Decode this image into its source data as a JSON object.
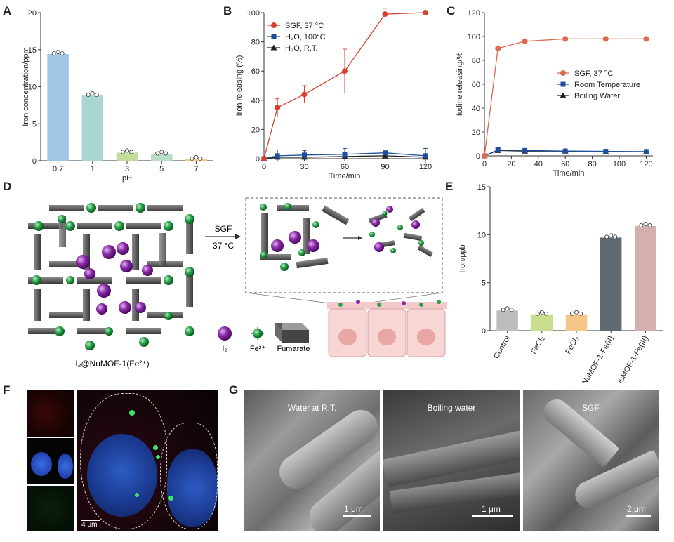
{
  "panels": {
    "A": "A",
    "B": "B",
    "C": "C",
    "D": "D",
    "E": "E",
    "F": "F",
    "G": "G"
  },
  "chart_data": [
    {
      "id": "A",
      "type": "bar",
      "categories": [
        "0.7",
        "1",
        "3",
        "5",
        "7"
      ],
      "values": [
        14.4,
        8.8,
        1.1,
        0.9,
        0.2
      ],
      "colors": [
        "#9ec7e6",
        "#a9d6cf",
        "#c3dc9c",
        "#b9dcc6",
        "#f2c88b"
      ],
      "xlabel": "pH",
      "ylabel": "Iron concentration/ppm",
      "ylim": [
        0,
        20
      ],
      "yticks": [
        0,
        5,
        10,
        15,
        20
      ]
    },
    {
      "id": "B",
      "type": "line",
      "x": [
        0,
        10,
        30,
        60,
        90,
        120
      ],
      "xlabel": "Time/min",
      "ylabel": "Iron releasing (%)",
      "xlim": [
        0,
        120
      ],
      "ylim": [
        0,
        100
      ],
      "xticks": [
        0,
        30,
        60,
        90,
        120
      ],
      "yticks": [
        0,
        20,
        40,
        60,
        80,
        100
      ],
      "series": [
        {
          "name": "SGF, 37 °C",
          "color": "#d8412f",
          "marker": "circle",
          "values": [
            0,
            35,
            44,
            60,
            99,
            100
          ],
          "errors": [
            0,
            6,
            6,
            15,
            4,
            1
          ]
        },
        {
          "name": "H₂O, 100°C",
          "color": "#1f4e9c",
          "marker": "square",
          "values": [
            0,
            2,
            2.5,
            3,
            4,
            2
          ],
          "errors": [
            0,
            4,
            3,
            4,
            2,
            5
          ]
        },
        {
          "name": "H₂O, R.T.",
          "color": "#222222",
          "marker": "triangle",
          "values": [
            0,
            1,
            1,
            1.5,
            2,
            1
          ],
          "errors": [
            0,
            1,
            1,
            1,
            1,
            1
          ]
        }
      ],
      "legend": "top-left"
    },
    {
      "id": "C",
      "type": "line",
      "x": [
        0,
        10,
        30,
        60,
        90,
        120
      ],
      "xlabel": "Time/min",
      "ylabel": "Iodine releasing/%",
      "xlim": [
        0,
        125
      ],
      "ylim": [
        0,
        120
      ],
      "xticks": [
        0,
        20,
        40,
        60,
        80,
        100,
        120
      ],
      "yticks": [
        0,
        20,
        40,
        60,
        80,
        100,
        120
      ],
      "series": [
        {
          "name": "SGF, 37 °C",
          "color": "#e0694f",
          "marker": "circle",
          "values": [
            0,
            90,
            96,
            98,
            98,
            98
          ]
        },
        {
          "name": "Room Temperature",
          "color": "#1f4e9c",
          "marker": "square",
          "values": [
            0,
            5,
            4.5,
            4,
            3.8,
            3.5
          ]
        },
        {
          "name": "Boiling Water",
          "color": "#222222",
          "marker": "triangle",
          "values": [
            0,
            4.5,
            4,
            4,
            3.5,
            3.5
          ]
        }
      ],
      "legend": "right"
    },
    {
      "id": "E",
      "type": "bar",
      "categories": [
        "Control",
        "FeCl₂",
        "FeCl₃",
        "NuMOF-1-Fe(II)",
        "NuMOF-1-Fe(III)"
      ],
      "values": [
        2.1,
        1.7,
        1.7,
        9.7,
        10.9
      ],
      "colors": [
        "#bdbdbd",
        "#c9dd8f",
        "#f5c687",
        "#5f6a72",
        "#d4b0ac"
      ],
      "ylabel": "Iron/ppb",
      "ylim": [
        0,
        15
      ],
      "yticks": [
        0,
        5,
        10,
        15
      ]
    }
  ],
  "schematic": {
    "mof_caption": "I₂@NuMOF-1(Fe²⁺)",
    "arrow_label_1": "SGF",
    "arrow_label_2": "37 °C",
    "legend_iodine": "I₂",
    "legend_iron": "Fe²⁺",
    "legend_fumarate": "Fumarate"
  },
  "microscopy": {
    "f_scale": "4 μm",
    "g1_caption": "Water at R.T.",
    "g1_scale": "1 μm",
    "g2_caption": "Boiling water",
    "g2_scale": "1 μm",
    "g3_caption": "SGF",
    "g3_scale": "2 μm"
  }
}
